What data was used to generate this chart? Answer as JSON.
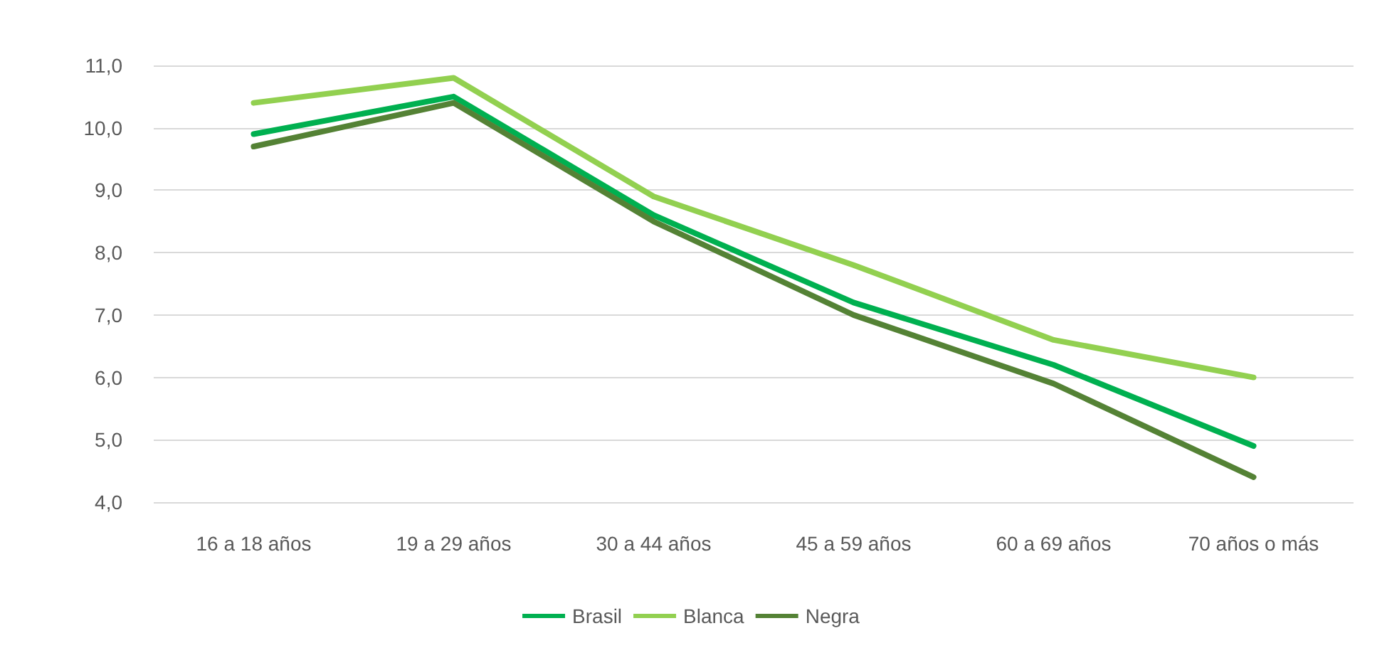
{
  "chart_data": {
    "type": "line",
    "categories": [
      "16 a 18 años",
      "19 a 29 años",
      "30 a 44 años",
      "45 a 59 años",
      "60 a 69 años",
      "70 años o más"
    ],
    "series": [
      {
        "name": "Brasil",
        "color": "#00b050",
        "values": [
          9.9,
          10.5,
          8.6,
          7.2,
          6.2,
          4.9
        ]
      },
      {
        "name": "Blanca",
        "color": "#92d050",
        "values": [
          10.4,
          10.8,
          8.9,
          7.8,
          6.6,
          6.0
        ]
      },
      {
        "name": "Negra",
        "color": "#548235",
        "values": [
          9.7,
          10.4,
          8.5,
          7.0,
          5.9,
          4.4
        ]
      }
    ],
    "ylim": [
      4,
      11
    ],
    "yticks": [
      {
        "value": 4,
        "label": "4,0"
      },
      {
        "value": 5,
        "label": "5,0"
      },
      {
        "value": 6,
        "label": "6,0"
      },
      {
        "value": 7,
        "label": "7,0"
      },
      {
        "value": 8,
        "label": "8,0"
      },
      {
        "value": 9,
        "label": "9,0"
      },
      {
        "value": 10,
        "label": "10,0"
      },
      {
        "value": 11,
        "label": "11,0"
      }
    ],
    "grid": "y",
    "legend": "bottom",
    "marker": "none",
    "line_style": "solid"
  }
}
